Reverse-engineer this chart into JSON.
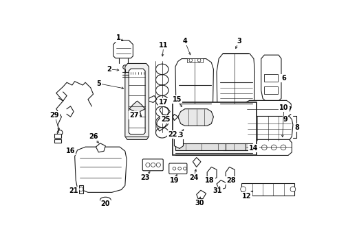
{
  "bg_color": "#ffffff",
  "line_color": "#1a1a1a",
  "figsize": [
    4.9,
    3.6
  ],
  "dpi": 100,
  "label_fontsize": 7.0,
  "label_color": "#000000"
}
